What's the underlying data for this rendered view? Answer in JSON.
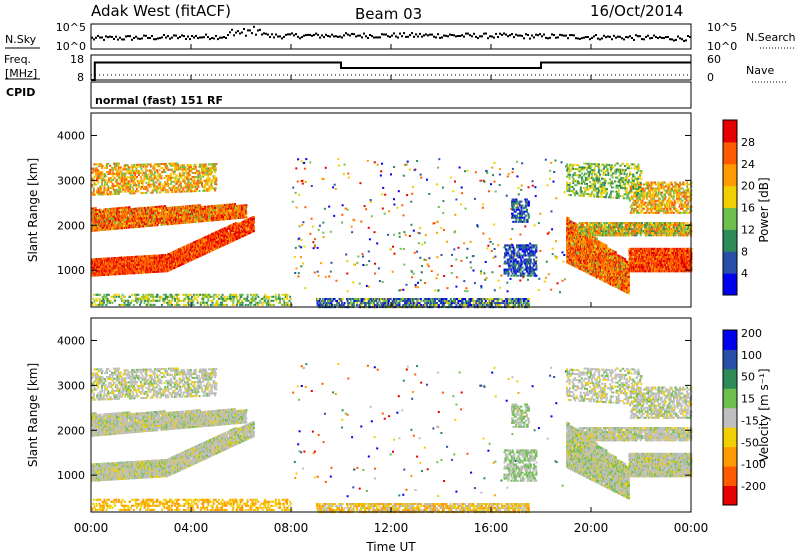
{
  "header": {
    "title": "Adak West (fitACF)",
    "beam": "Beam 03",
    "date": "16/Oct/2014"
  },
  "noise_panel": {
    "left_label": "N.Sky",
    "right_label": "N.Search",
    "left_ticks": [
      "10^5",
      "10^0"
    ],
    "right_ticks": [
      "10^5",
      "10^0"
    ]
  },
  "freq_panel": {
    "left_label_top": "Freq.",
    "left_label_unit": "[MHz]",
    "cpid_label": "CPID",
    "left_ticks": [
      "18",
      "8"
    ],
    "right_label": "Nave",
    "right_ticks": [
      "60",
      "0"
    ],
    "cpid_text": "normal (fast) 151 RF"
  },
  "x_axis": {
    "label": "Time UT",
    "ticks": [
      "00:00",
      "04:00",
      "08:00",
      "12:00",
      "16:00",
      "20:00",
      "00:00"
    ]
  },
  "colors": {
    "power": [
      "#0000ee",
      "#2a4fa8",
      "#2e8b57",
      "#6fbf4f",
      "#f0d000",
      "#ff9a00",
      "#ff5a00",
      "#e60000"
    ],
    "velocity": [
      "#e60000",
      "#ff5a00",
      "#ff9a00",
      "#f0d000",
      "#bfbfbf",
      "#6fbf4f",
      "#2e8b57",
      "#2a4fa8",
      "#0000ee"
    ]
  },
  "chart_data": [
    {
      "type": "line",
      "name": "noise",
      "x_range_hours": [
        0,
        24
      ],
      "ylim_log10": [
        0,
        5
      ]
    },
    {
      "type": "line",
      "name": "frequency",
      "x_range_hours": [
        0,
        24
      ],
      "ylim": [
        8,
        18
      ],
      "series": [
        {
          "x": [
            0,
            0.15,
            0.15,
            10,
            10,
            18,
            18,
            24
          ],
          "values": [
            8,
            8,
            15,
            15,
            12.8,
            12.8,
            15,
            15
          ]
        }
      ]
    },
    {
      "type": "heatmap",
      "name": "power",
      "ylabel": "Slant Range [km]",
      "ylim": [
        180,
        4500
      ],
      "yticks": [
        "1000",
        "2000",
        "3000",
        "4000"
      ],
      "colorbar_label": "Power [dB]",
      "colorbar_ticks": [
        "4",
        "8",
        "12",
        "16",
        "20",
        "24",
        "28"
      ],
      "colorbar_range": [
        0,
        32
      ]
    },
    {
      "type": "heatmap",
      "name": "velocity",
      "ylabel": "Slant Range [km]",
      "ylim": [
        180,
        4500
      ],
      "yticks": [
        "1000",
        "2000",
        "3000",
        "4000"
      ],
      "colorbar_label": "Velocity [m s⁻¹]",
      "colorbar_ticks": [
        "200",
        "100",
        "50",
        "15",
        "-15",
        "-50",
        "-100",
        "-200"
      ]
    }
  ]
}
